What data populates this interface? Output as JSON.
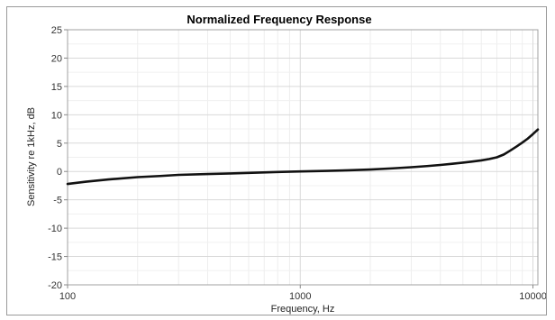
{
  "chart_data": {
    "type": "line",
    "title": "Normalized Frequency Response",
    "xlabel": "Frequency, Hz",
    "ylabel": "Sensitivity re 1kHz, dB",
    "x_scale": "log",
    "xlim": [
      100,
      10500
    ],
    "ylim": [
      -20,
      25
    ],
    "x_ticks": [
      100,
      1000,
      10000
    ],
    "x_tick_labels": [
      "100",
      "1000",
      "10000"
    ],
    "y_ticks": [
      -20,
      -15,
      -10,
      -5,
      0,
      5,
      10,
      15,
      20,
      25
    ],
    "y_tick_labels": [
      "-20",
      "-15",
      "-10",
      "-5",
      "0",
      "5",
      "10",
      "15",
      "20",
      "25"
    ],
    "grid": true,
    "line_color": "#111111",
    "series": [
      {
        "x": [
          100,
          120,
          150,
          200,
          250,
          300,
          400,
          500,
          600,
          800,
          1000,
          1300,
          1600,
          2000,
          2500,
          3000,
          3500,
          4000,
          4500,
          5000,
          5500,
          6000,
          6500,
          7000,
          7500,
          8000,
          8500,
          9000,
          9500,
          10000,
          10500
        ],
        "y": [
          -2.2,
          -1.8,
          -1.4,
          -1.0,
          -0.8,
          -0.6,
          -0.45,
          -0.35,
          -0.25,
          -0.1,
          0.0,
          0.1,
          0.2,
          0.35,
          0.55,
          0.75,
          0.95,
          1.15,
          1.35,
          1.55,
          1.75,
          1.95,
          2.2,
          2.5,
          3.0,
          3.7,
          4.4,
          5.1,
          5.8,
          6.6,
          7.4
        ]
      }
    ]
  }
}
